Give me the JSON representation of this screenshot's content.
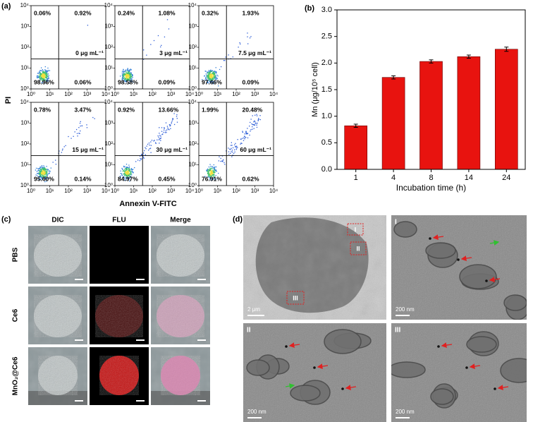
{
  "panel_labels": [
    "(a)",
    "(b)",
    "(c)",
    "(d)"
  ],
  "chart_data": [
    {
      "type": "flow",
      "xlabel": "Annexin V-FITC",
      "ylabel": "PI",
      "log_scale": true,
      "xlim": [
        1,
        10000
      ],
      "ylim": [
        1,
        10000
      ],
      "xticks": [
        {
          "value": 1,
          "label": "10⁰"
        },
        {
          "value": 10,
          "label": "10¹"
        },
        {
          "value": 100,
          "label": "10²"
        },
        {
          "value": 1000,
          "label": "10³"
        },
        {
          "value": 10000,
          "label": "10⁴"
        }
      ],
      "yticks": [
        {
          "value": 1,
          "label": "10⁰"
        },
        {
          "value": 10,
          "label": "10¹"
        },
        {
          "value": 100,
          "label": "10²"
        },
        {
          "value": 1000,
          "label": "10³"
        },
        {
          "value": 10000,
          "label": "10⁴"
        }
      ],
      "plots": [
        {
          "label": "0 μg mL⁻¹",
          "quadrants": [
            "0.06%",
            "0.92%",
            "98.96%",
            "0.06%"
          ]
        },
        {
          "label": "3 μg mL⁻¹",
          "quadrants": [
            "0.24%",
            "1.08%",
            "98.58%",
            "0.09%"
          ]
        },
        {
          "label": "7.5 μg mL⁻¹",
          "quadrants": [
            "0.32%",
            "1.93%",
            "97.66%",
            "0.09%"
          ]
        },
        {
          "label": "15 μg mL⁻¹",
          "quadrants": [
            "0.78%",
            "3.47%",
            "95.60%",
            "0.14%"
          ]
        },
        {
          "label": "30 μg mL⁻¹",
          "quadrants": [
            "0.92%",
            "13.66%",
            "84.97%",
            "0.45%"
          ]
        },
        {
          "label": "60 μg mL⁻¹",
          "quadrants": [
            "1.99%",
            "20.48%",
            "76.91%",
            "0.62%"
          ]
        }
      ]
    },
    {
      "type": "bar",
      "xlabel": "Incubation time (h)",
      "ylabel": "Mn (μg/10⁵ cell)",
      "categories": [
        "1",
        "4",
        "8",
        "14",
        "24"
      ],
      "values": [
        0.82,
        1.73,
        2.03,
        2.12,
        2.26
      ],
      "errors": [
        0.03,
        0.03,
        0.03,
        0.03,
        0.04
      ],
      "color": "#e8130f",
      "ylim": [
        0,
        3
      ],
      "yticks": [
        {
          "value": 0,
          "label": "0.0"
        },
        0.5,
        {
          "value": 1,
          "label": "1.0"
        },
        1.5,
        {
          "value": 2,
          "label": "2.0"
        },
        2.5,
        {
          "value": 3,
          "label": "3.0"
        }
      ]
    }
  ],
  "micrographs": {
    "columns": [
      "DIC",
      "FLU",
      "Merge"
    ],
    "rows": [
      "PBS",
      "Ce6",
      "MnO₂@Ce6"
    ]
  },
  "tem": {
    "overview_scale": "2 μm",
    "panels": [
      {
        "label": "I",
        "scale": "200 nm"
      },
      {
        "label": "II",
        "scale": "200 nm"
      },
      {
        "label": "III",
        "scale": "200 nm"
      }
    ]
  }
}
